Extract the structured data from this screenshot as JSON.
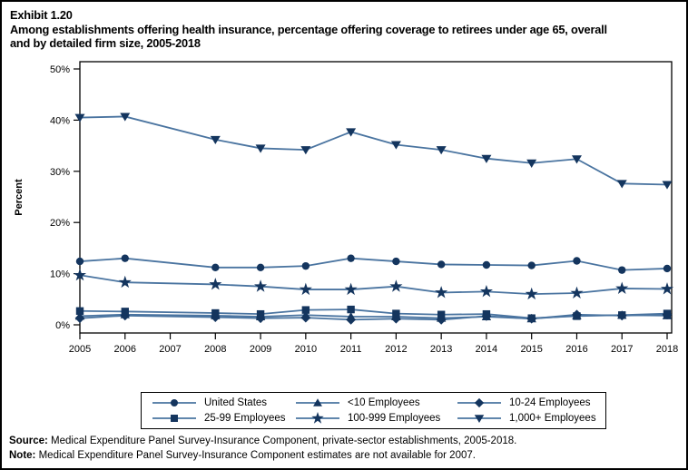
{
  "header": {
    "exhibit_label": "Exhibit 1.20",
    "title_lines": [
      "Among establishments offering health insurance, percentage offering coverage to retirees under age 65, overall",
      "and by detailed firm size, 2005-2018"
    ]
  },
  "chart_data": {
    "type": "line",
    "ylabel": "Percent",
    "ylim": [
      0,
      50
    ],
    "yticks": [
      0,
      10,
      20,
      30,
      40,
      50
    ],
    "ytick_suffix": "%",
    "xticks": [
      2005,
      2006,
      2007,
      2008,
      2009,
      2010,
      2011,
      2012,
      2013,
      2014,
      2015,
      2016,
      2017,
      2018
    ],
    "missing_data_years": [
      2007
    ],
    "legend_position": "bottom",
    "grid": false,
    "line_color": "#4a74a0",
    "marker_color": "#14355e",
    "series": [
      {
        "name": "United States",
        "marker": "circle",
        "values": [
          12.4,
          13.0,
          null,
          11.2,
          11.2,
          11.5,
          13.0,
          12.4,
          11.8,
          11.7,
          11.6,
          12.5,
          10.7,
          11.0
        ]
      },
      {
        "name": "<10 Employees",
        "marker": "triangle-up",
        "values": [
          1.7,
          2.0,
          null,
          1.8,
          1.6,
          1.9,
          1.6,
          1.6,
          1.3,
          1.6,
          1.2,
          1.8,
          1.9,
          1.8
        ]
      },
      {
        "name": "10-24 Employees",
        "marker": "diamond",
        "values": [
          1.3,
          1.8,
          null,
          1.5,
          1.3,
          1.4,
          1.0,
          1.2,
          1.0,
          1.7,
          1.2,
          2.0,
          1.8,
          2.0
        ]
      },
      {
        "name": "25-99 Employees",
        "marker": "square",
        "values": [
          2.7,
          2.6,
          null,
          2.3,
          2.1,
          2.9,
          3.0,
          2.2,
          2.0,
          2.1,
          1.3,
          1.7,
          1.9,
          2.2
        ]
      },
      {
        "name": "100-999 Employees",
        "marker": "star",
        "values": [
          9.7,
          8.3,
          null,
          7.9,
          7.5,
          6.9,
          6.9,
          7.5,
          6.3,
          6.5,
          6.0,
          6.2,
          7.1,
          7.0
        ]
      },
      {
        "name": "1,000+ Employees",
        "marker": "triangle-down",
        "values": [
          40.5,
          40.7,
          null,
          36.2,
          34.5,
          34.2,
          37.7,
          35.2,
          34.2,
          32.5,
          31.6,
          32.4,
          27.6,
          27.4
        ]
      }
    ]
  },
  "footer": {
    "source_label": "Source:",
    "source_text": "Medical Expenditure Panel Survey-Insurance Component, private-sector establishments, 2005-2018.",
    "note_label": "Note:",
    "note_text": "Medical Expenditure Panel Survey-Insurance Component estimates are not available for 2007."
  }
}
